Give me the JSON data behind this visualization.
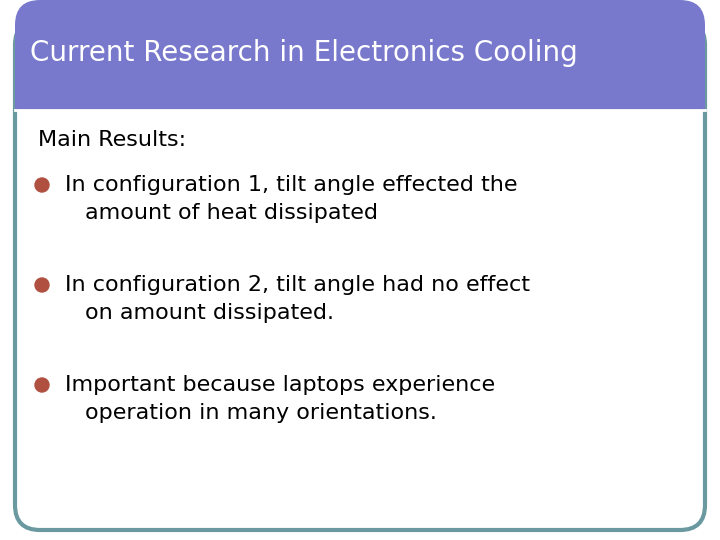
{
  "title": "Current Research in Electronics Cooling",
  "title_bg_color": "#7878cc",
  "title_text_color": "#ffffff",
  "title_fontsize": 20,
  "title_font_weight": "normal",
  "body_bg_color": "#ffffff",
  "border_color": "#6a9aa0",
  "outer_bg_color": "#ffffff",
  "header_label": "Main Results:",
  "header_fontsize": 16,
  "header_font_weight": "normal",
  "bullet_color": "#b05040",
  "bullet_fontsize": 16,
  "bullet_font_weight": "normal",
  "divider_color": "#ffffff",
  "bullets": [
    [
      "In configuration 1, tilt angle effected the",
      "amount of heat dissipated"
    ],
    [
      "In configuration 2, tilt angle had no effect",
      "on amount dissipated."
    ],
    [
      "Important because laptops experience",
      "operation in many orientations."
    ]
  ]
}
